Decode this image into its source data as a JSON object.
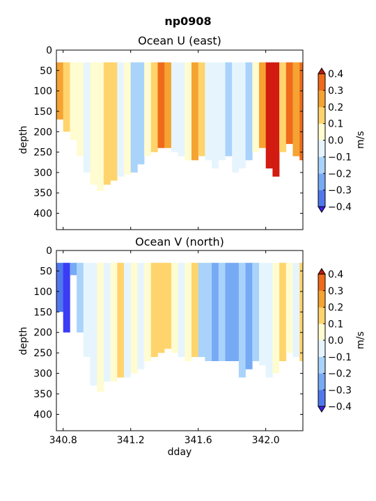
{
  "figure": {
    "suptitle": "np0908"
  },
  "colors": {
    "levels": [
      -0.4,
      -0.3,
      -0.2,
      -0.1,
      0.0,
      0.1,
      0.2,
      0.3,
      0.4
    ],
    "bins": [
      "#3a3cf6",
      "#4f78ec",
      "#76aaf4",
      "#a9d3fb",
      "#e6f5fd",
      "#fffcd1",
      "#ffd46c",
      "#f5a332",
      "#ef6a1a",
      "#d21b11"
    ],
    "under": "#3d1ff0",
    "over": "#c21710"
  },
  "chart_data": [
    {
      "type": "heatmap",
      "title": "Ocean U (east)",
      "xlabel": "",
      "ylabel": "depth",
      "xlim": [
        340.76,
        342.22
      ],
      "ylim": [
        440,
        0
      ],
      "xticks": [
        340.8,
        341.2,
        341.6,
        342.0
      ],
      "xtick_labels": [
        "",
        "",
        "",
        ""
      ],
      "yticks": [
        0,
        50,
        100,
        150,
        200,
        250,
        300,
        350,
        400
      ],
      "ytick_labels": [
        "0",
        "50",
        "100",
        "150",
        "200",
        "250",
        "300",
        "350",
        "400"
      ],
      "colorbar": {
        "label": "m/s",
        "ticks": [
          "0.4",
          "0.3",
          "0.2",
          "0.1",
          "0.0",
          "−0.1",
          "−0.2",
          "−0.3",
          "−0.4"
        ]
      },
      "top_depth": 30,
      "columns": [
        {
          "t": 340.76,
          "v": 0.2,
          "bottom": 170
        },
        {
          "t": 340.8,
          "v": 0.1,
          "bottom": 200
        },
        {
          "t": 340.84,
          "v": 0.05,
          "bottom": 220
        },
        {
          "t": 340.88,
          "v": 0.05,
          "bottom": 260
        },
        {
          "t": 340.92,
          "v": -0.05,
          "bottom": 300
        },
        {
          "t": 340.96,
          "v": 0.05,
          "bottom": 330
        },
        {
          "t": 341.0,
          "v": 0.05,
          "bottom": 345
        },
        {
          "t": 341.04,
          "v": 0.15,
          "bottom": 330
        },
        {
          "t": 341.08,
          "v": 0.1,
          "bottom": 320
        },
        {
          "t": 341.12,
          "v": -0.05,
          "bottom": 310
        },
        {
          "t": 341.16,
          "v": 0.05,
          "bottom": 305
        },
        {
          "t": 341.2,
          "v": -0.15,
          "bottom": 300
        },
        {
          "t": 341.24,
          "v": -0.2,
          "bottom": 280
        },
        {
          "t": 341.28,
          "v": 0.05,
          "bottom": 260
        },
        {
          "t": 341.32,
          "v": 0.15,
          "bottom": 250
        },
        {
          "t": 341.36,
          "v": 0.3,
          "bottom": 240
        },
        {
          "t": 341.4,
          "v": 0.2,
          "bottom": 240
        },
        {
          "t": 341.44,
          "v": -0.1,
          "bottom": 250
        },
        {
          "t": 341.48,
          "v": -0.05,
          "bottom": 260
        },
        {
          "t": 341.52,
          "v": 0.05,
          "bottom": 270
        },
        {
          "t": 341.56,
          "v": 0.25,
          "bottom": 270
        },
        {
          "t": 341.6,
          "v": 0.1,
          "bottom": 260
        },
        {
          "t": 341.64,
          "v": -0.05,
          "bottom": 270
        },
        {
          "t": 341.68,
          "v": -0.1,
          "bottom": 290
        },
        {
          "t": 341.72,
          "v": -0.05,
          "bottom": 270
        },
        {
          "t": 341.76,
          "v": -0.15,
          "bottom": 260
        },
        {
          "t": 341.8,
          "v": -0.1,
          "bottom": 300
        },
        {
          "t": 341.84,
          "v": -0.05,
          "bottom": 290
        },
        {
          "t": 341.88,
          "v": -0.15,
          "bottom": 270
        },
        {
          "t": 341.92,
          "v": 0.05,
          "bottom": 250
        },
        {
          "t": 341.96,
          "v": 0.25,
          "bottom": 240
        },
        {
          "t": 342.0,
          "v": 0.45,
          "bottom": 290
        },
        {
          "t": 342.04,
          "v": 0.45,
          "bottom": 310
        },
        {
          "t": 342.08,
          "v": 0.1,
          "bottom": 250
        },
        {
          "t": 342.12,
          "v": 0.3,
          "bottom": 230
        },
        {
          "t": 342.16,
          "v": 0.2,
          "bottom": 260
        },
        {
          "t": 342.2,
          "v": 0.35,
          "bottom": 270
        }
      ]
    },
    {
      "type": "heatmap",
      "title": "Ocean V (north)",
      "xlabel": "dday",
      "ylabel": "depth",
      "xlim": [
        340.76,
        342.22
      ],
      "ylim": [
        440,
        0
      ],
      "xticks": [
        340.8,
        341.2,
        341.6,
        342.0
      ],
      "xtick_labels": [
        "340.8",
        "341.2",
        "341.6",
        "342.0"
      ],
      "yticks": [
        0,
        50,
        100,
        150,
        200,
        250,
        300,
        350,
        400
      ],
      "ytick_labels": [
        "0",
        "50",
        "100",
        "150",
        "200",
        "250",
        "300",
        "350",
        "400"
      ],
      "colorbar": {
        "label": "m/s",
        "ticks": [
          "0.4",
          "0.3",
          "0.2",
          "0.1",
          "0.0",
          "−0.1",
          "−0.2",
          "−0.3",
          "−0.4"
        ]
      },
      "top_depth": 30,
      "columns": [
        {
          "t": 340.76,
          "v": -0.35,
          "bottom": 150
        },
        {
          "t": 340.8,
          "v": -0.45,
          "bottom": 200
        },
        {
          "t": 340.84,
          "v": -0.3,
          "bottom": 60
        },
        {
          "t": 340.88,
          "v": -0.15,
          "bottom": 200
        },
        {
          "t": 340.92,
          "v": -0.1,
          "bottom": 260
        },
        {
          "t": 340.96,
          "v": -0.05,
          "bottom": 330
        },
        {
          "t": 341.0,
          "v": 0.05,
          "bottom": 345
        },
        {
          "t": 341.04,
          "v": -0.1,
          "bottom": 320
        },
        {
          "t": 341.08,
          "v": 0.05,
          "bottom": 320
        },
        {
          "t": 341.12,
          "v": 0.1,
          "bottom": 310
        },
        {
          "t": 341.16,
          "v": -0.05,
          "bottom": 310
        },
        {
          "t": 341.2,
          "v": 0.05,
          "bottom": 300
        },
        {
          "t": 341.24,
          "v": -0.1,
          "bottom": 290
        },
        {
          "t": 341.28,
          "v": 0.05,
          "bottom": 270
        },
        {
          "t": 341.32,
          "v": 0.15,
          "bottom": 260
        },
        {
          "t": 341.36,
          "v": 0.1,
          "bottom": 250
        },
        {
          "t": 341.4,
          "v": 0.15,
          "bottom": 240
        },
        {
          "t": 341.44,
          "v": 0.05,
          "bottom": 250
        },
        {
          "t": 341.48,
          "v": -0.05,
          "bottom": 260
        },
        {
          "t": 341.52,
          "v": 0.05,
          "bottom": 270
        },
        {
          "t": 341.56,
          "v": 0.15,
          "bottom": 260
        },
        {
          "t": 341.6,
          "v": -0.15,
          "bottom": 260
        },
        {
          "t": 341.64,
          "v": -0.2,
          "bottom": 270
        },
        {
          "t": 341.68,
          "v": -0.25,
          "bottom": 270
        },
        {
          "t": 341.72,
          "v": -0.15,
          "bottom": 270
        },
        {
          "t": 341.76,
          "v": -0.25,
          "bottom": 270
        },
        {
          "t": 341.8,
          "v": -0.3,
          "bottom": 270
        },
        {
          "t": 341.84,
          "v": -0.2,
          "bottom": 310
        },
        {
          "t": 341.88,
          "v": -0.3,
          "bottom": 290
        },
        {
          "t": 341.92,
          "v": -0.15,
          "bottom": 270
        },
        {
          "t": 341.96,
          "v": -0.05,
          "bottom": 280
        },
        {
          "t": 342.0,
          "v": -0.1,
          "bottom": 310
        },
        {
          "t": 342.04,
          "v": 0.05,
          "bottom": 300
        },
        {
          "t": 342.08,
          "v": 0.1,
          "bottom": 270
        },
        {
          "t": 342.12,
          "v": 0.05,
          "bottom": 250
        },
        {
          "t": 342.16,
          "v": -0.05,
          "bottom": 260
        },
        {
          "t": 342.2,
          "v": 0.15,
          "bottom": 270
        }
      ]
    }
  ]
}
